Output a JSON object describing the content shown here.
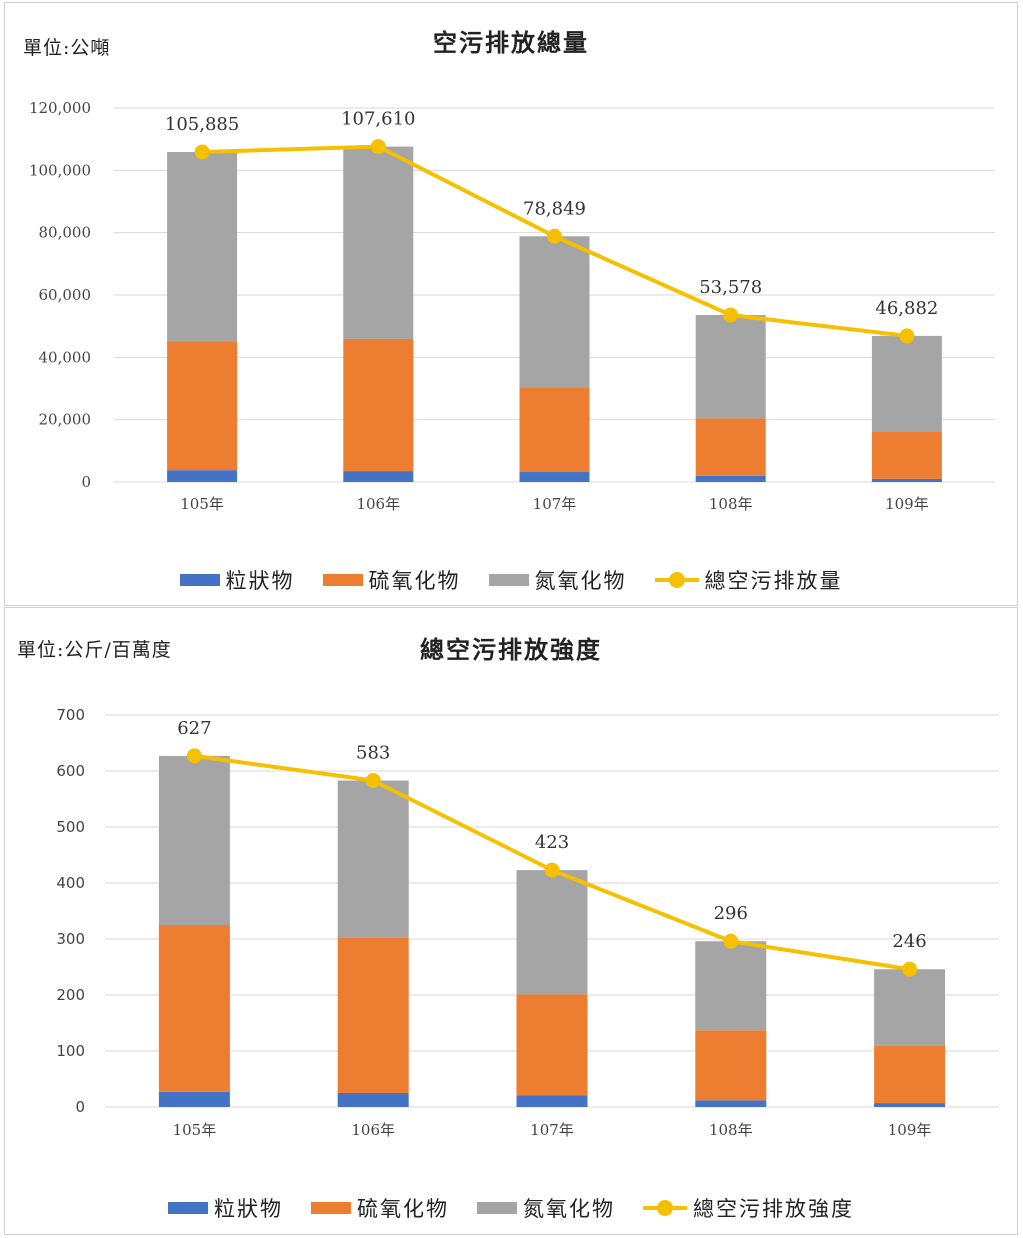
{
  "colors": {
    "pm": "#4472c4",
    "sox": "#ed7d31",
    "nox": "#a5a5a5",
    "total": "#f5c000",
    "grid": "#d9d9d9"
  },
  "chart_data": [
    {
      "type": "bar",
      "stacked": true,
      "title": "空污排放總量",
      "unit_label": "單位:公噸",
      "categories": [
        "105年",
        "106年",
        "107年",
        "108年",
        "109年"
      ],
      "series": [
        {
          "name": "粒狀物",
          "values": [
            3800,
            3500,
            3200,
            2000,
            1000
          ]
        },
        {
          "name": "硫氧化物",
          "values": [
            41400,
            42400,
            27100,
            18400,
            15300
          ]
        },
        {
          "name": "氮氧化物",
          "values": [
            60685,
            61710,
            48549,
            33178,
            30582
          ]
        }
      ],
      "line_series": {
        "name": "總空污排放量",
        "values": [
          105885,
          107610,
          78849,
          53578,
          46882
        ]
      },
      "data_labels": [
        "105,885",
        "107,610",
        "78,849",
        "53,578",
        "46,882"
      ],
      "ylim": [
        0,
        120000
      ],
      "yticks": [
        0,
        20000,
        40000,
        60000,
        80000,
        100000,
        120000
      ],
      "ytick_labels": [
        "0",
        "20,000",
        "40,000",
        "60,000",
        "80,000",
        "100,000",
        "120,000"
      ],
      "grid": true,
      "legend": "bottom"
    },
    {
      "type": "bar",
      "stacked": true,
      "title": "總空污排放強度",
      "unit_label": "單位:公斤/百萬度",
      "categories": [
        "105年",
        "106年",
        "107年",
        "108年",
        "109年"
      ],
      "series": [
        {
          "name": "粒狀物",
          "values": [
            27,
            25,
            21,
            12,
            7
          ]
        },
        {
          "name": "硫氧化物",
          "values": [
            298,
            278,
            180,
            125,
            102
          ]
        },
        {
          "name": "氮氧化物",
          "values": [
            302,
            280,
            222,
            159,
            137
          ]
        }
      ],
      "line_series": {
        "name": "總空污排放強度",
        "values": [
          627,
          583,
          423,
          296,
          246
        ]
      },
      "data_labels": [
        "627",
        "583",
        "423",
        "296",
        "246"
      ],
      "ylim": [
        0,
        700
      ],
      "yticks": [
        0,
        100,
        200,
        300,
        400,
        500,
        600,
        700
      ],
      "ytick_labels": [
        "0",
        "100",
        "200",
        "300",
        "400",
        "500",
        "600",
        "700"
      ],
      "grid": true,
      "legend": "bottom"
    }
  ]
}
